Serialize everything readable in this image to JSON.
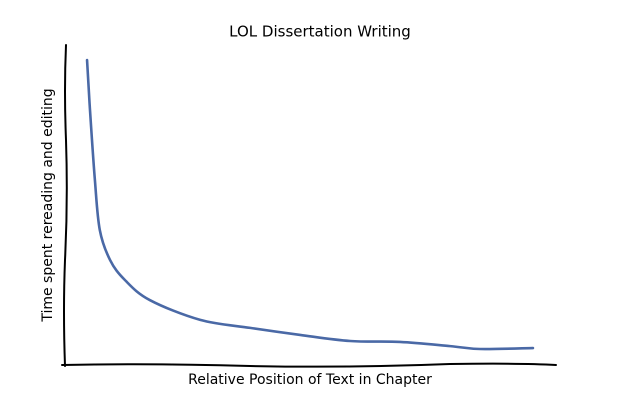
{
  "chart_data": {
    "type": "line",
    "title": "LOL Dissertation Writing",
    "x_label": "Relative Position of Text in Chapter",
    "y_label": "Time spent rereading and editing",
    "x": [
      4.5,
      5.1,
      6.1,
      7.1,
      9.2,
      12.2,
      17.3,
      27.6,
      37.8,
      48.0,
      58.2,
      68.4,
      78.6,
      84.7,
      95.5
    ],
    "values": [
      95.3,
      79.7,
      57.8,
      42.2,
      32.8,
      26.6,
      20.3,
      14.1,
      11.6,
      9.4,
      7.5,
      7.2,
      5.9,
      5.0,
      5.3
    ],
    "color": "#4a69a6",
    "xlim": [
      0,
      100
    ],
    "ylim": [
      0,
      100
    ]
  }
}
